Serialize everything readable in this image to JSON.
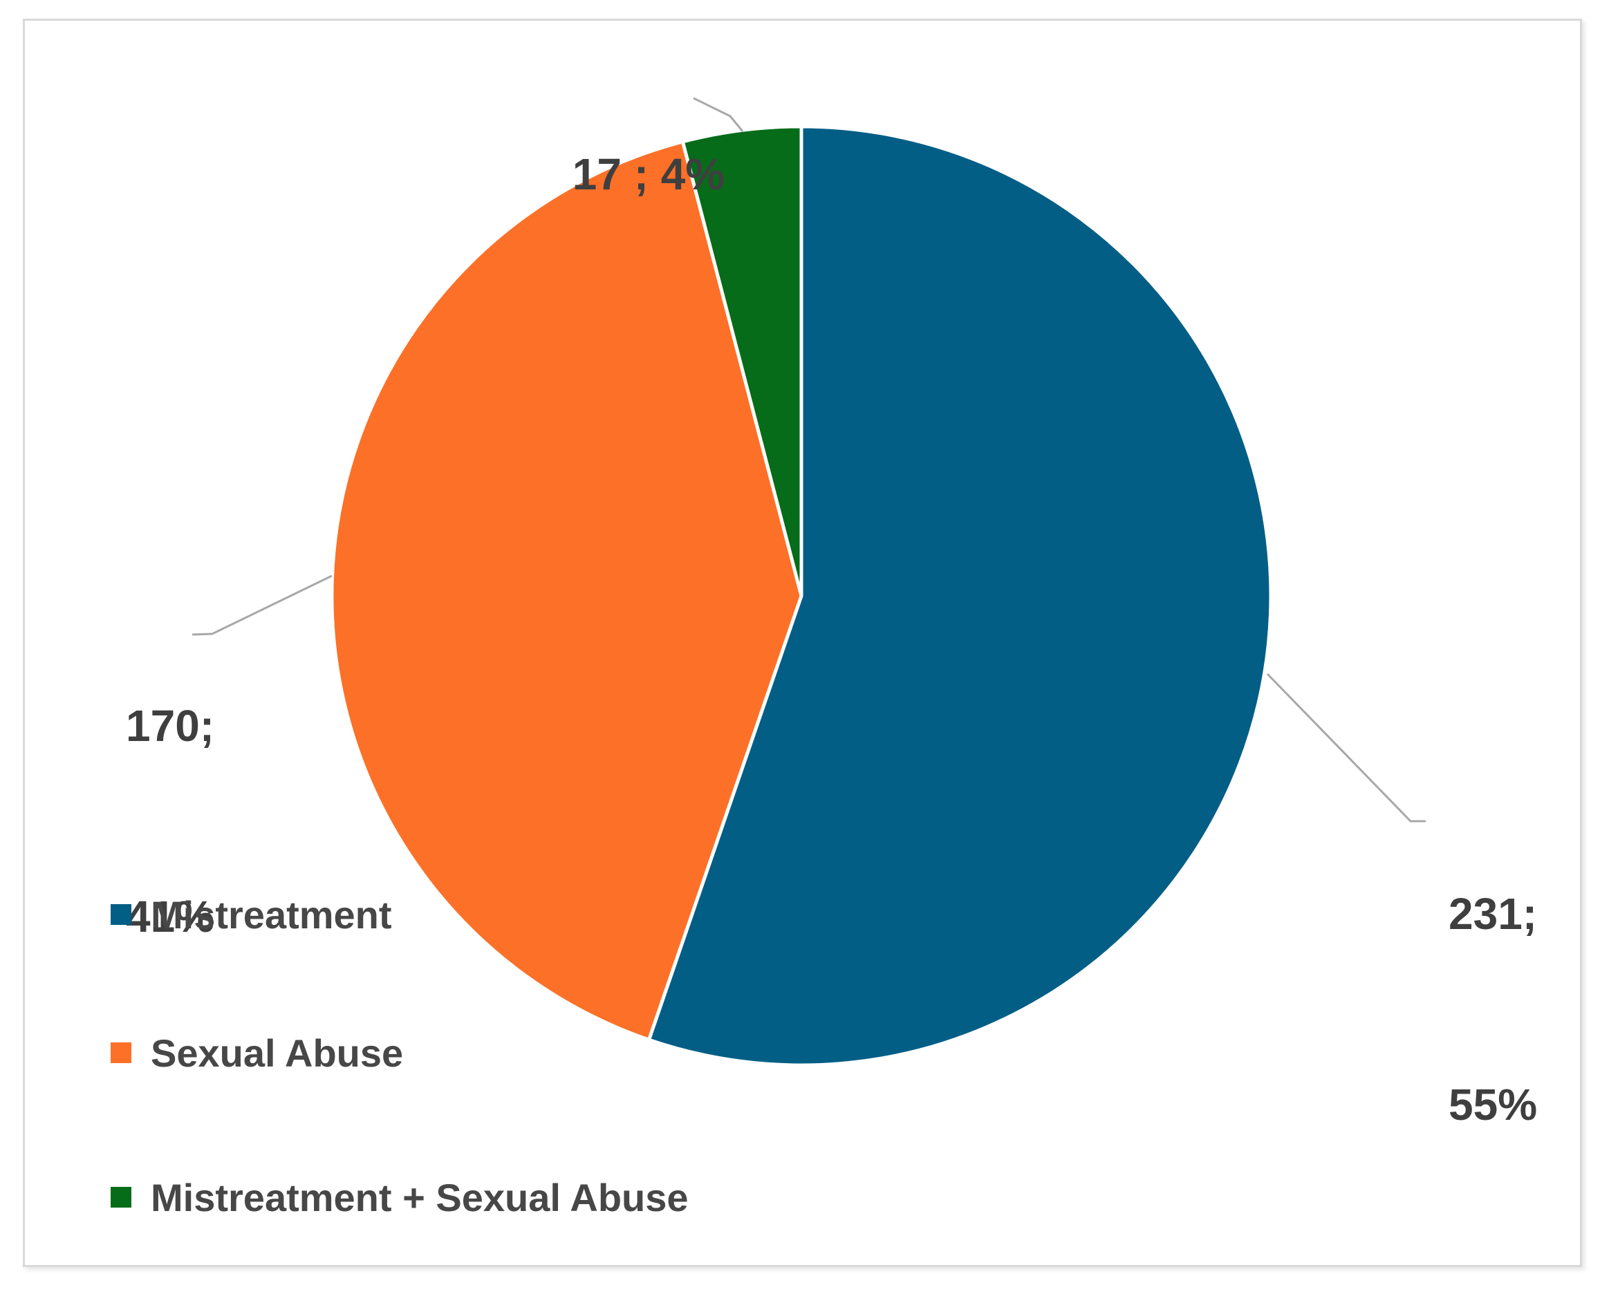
{
  "chart_data": {
    "type": "pie",
    "title": "",
    "categories": [
      "Mistreatment",
      "Sexual Abuse",
      "Mistreatment + Sexual Abuse"
    ],
    "values": [
      231,
      170,
      17
    ],
    "percent_labels": [
      "55%",
      "41%",
      "4%"
    ],
    "start_angle": "12 o'clock",
    "direction": "clockwise",
    "legend_position": "bottom-left",
    "slices": [
      {
        "name": "Mistreatment",
        "value": 231,
        "percent": "55%",
        "color": "#035E86",
        "label_lines": [
          "231;",
          "55%"
        ]
      },
      {
        "name": "Sexual Abuse",
        "value": 170,
        "percent": "41%",
        "color": "#FD7028",
        "label_lines": [
          "170;",
          "41%"
        ]
      },
      {
        "name": "Mistreatment + Sexual Abuse",
        "value": 17,
        "percent": "4%",
        "color": "#066C19",
        "label_lines": [
          "17 ; 4%"
        ]
      }
    ]
  },
  "legend": {
    "items": [
      {
        "label": "Mistreatment",
        "color": "#035E86"
      },
      {
        "label": "Sexual Abuse",
        "color": "#FD7028"
      },
      {
        "label": "Mistreatment + Sexual Abuse",
        "color": "#066C19"
      }
    ]
  },
  "styles": {
    "label_text_color": "#3F3F3F",
    "legend_text_color": "#474747",
    "leader_line_color": "#A8A8A8",
    "frame_border_color": "#D9D9D9",
    "slice_gap_color": "#FFFFFF"
  }
}
